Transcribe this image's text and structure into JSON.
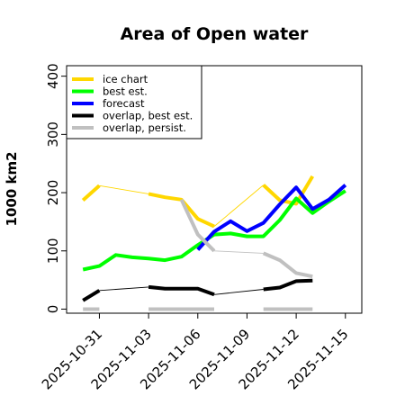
{
  "chart_data": {
    "type": "line",
    "title": "Area of Open water",
    "xlabel": "",
    "ylabel": "1000 km2",
    "ylim": [
      -7,
      418
    ],
    "xlim": [
      "2025-10-29",
      "2025-11-16"
    ],
    "yticks": [
      0,
      100,
      200,
      300,
      400
    ],
    "xticks": [
      "2025-10-31",
      "2025-11-03",
      "2025-11-06",
      "2025-11-09",
      "2025-11-12",
      "2025-11-15"
    ],
    "xtick_colors": [
      "#000000",
      "#000000",
      "#228B22",
      "#000000",
      "#000000",
      "#000000"
    ],
    "legend_position": "top-left",
    "grid": false,
    "series": [
      {
        "name": "ice chart",
        "color": "#FFD700",
        "segments": [
          [
            [
              "2025-10-30",
              187
            ],
            [
              "2025-10-31",
              212
            ]
          ],
          [
            [
              "2025-11-03",
              198
            ],
            [
              "2025-11-04",
              192
            ],
            [
              "2025-11-05",
              188
            ],
            [
              "2025-11-06",
              155
            ],
            [
              "2025-11-07",
              142
            ]
          ],
          [
            [
              "2025-11-10",
              213
            ],
            [
              "2025-11-11",
              187
            ],
            [
              "2025-11-12",
              181
            ],
            [
              "2025-11-13",
              228
            ]
          ]
        ],
        "connectors": [
          [
            [
              "2025-10-31",
              212
            ],
            [
              "2025-11-03",
              198
            ]
          ],
          [
            [
              "2025-11-07",
              142
            ],
            [
              "2025-11-10",
              213
            ]
          ]
        ]
      },
      {
        "name": "best est.",
        "color": "#00FF00",
        "points": [
          [
            "2025-10-30",
            68
          ],
          [
            "2025-10-31",
            74
          ],
          [
            "2025-11-01",
            93
          ],
          [
            "2025-11-02",
            89
          ],
          [
            "2025-11-03",
            87
          ],
          [
            "2025-11-04",
            84
          ],
          [
            "2025-11-05",
            90
          ],
          [
            "2025-11-06",
            110
          ],
          [
            "2025-11-07",
            128
          ],
          [
            "2025-11-08",
            130
          ],
          [
            "2025-11-09",
            125
          ],
          [
            "2025-11-10",
            125
          ],
          [
            "2025-11-11",
            153
          ],
          [
            "2025-11-12",
            190
          ],
          [
            "2025-11-13",
            165
          ],
          [
            "2025-11-14",
            185
          ],
          [
            "2025-11-15",
            203
          ]
        ]
      },
      {
        "name": "forecast",
        "color": "#0000FF",
        "points": [
          [
            "2025-11-06",
            102
          ],
          [
            "2025-11-07",
            133
          ],
          [
            "2025-11-08",
            151
          ],
          [
            "2025-11-09",
            134
          ],
          [
            "2025-11-10",
            148
          ],
          [
            "2025-11-11",
            180
          ],
          [
            "2025-11-12",
            209
          ],
          [
            "2025-11-13",
            172
          ],
          [
            "2025-11-14",
            188
          ],
          [
            "2025-11-15",
            213
          ]
        ]
      },
      {
        "name": "overlap, best est.",
        "color": "#000000",
        "segments": [
          [
            [
              "2025-10-30",
              15
            ],
            [
              "2025-10-31",
              32
            ]
          ],
          [
            [
              "2025-11-03",
              38
            ],
            [
              "2025-11-04",
              35
            ],
            [
              "2025-11-05",
              35
            ],
            [
              "2025-11-06",
              35
            ],
            [
              "2025-11-07",
              25
            ]
          ],
          [
            [
              "2025-11-10",
              34
            ],
            [
              "2025-11-11",
              37
            ],
            [
              "2025-11-12",
              48
            ],
            [
              "2025-11-13",
              49
            ]
          ]
        ],
        "connectors": [
          [
            [
              "2025-10-31",
              32
            ],
            [
              "2025-11-03",
              38
            ]
          ],
          [
            [
              "2025-11-07",
              25
            ],
            [
              "2025-11-10",
              34
            ]
          ]
        ]
      },
      {
        "name": "overlap, persist.",
        "color": "#C0C0C0",
        "segments": [
          [
            [
              "2025-10-30",
              0
            ],
            [
              "2025-10-31",
              0
            ]
          ],
          [
            [
              "2025-11-03",
              0
            ],
            [
              "2025-11-07",
              0
            ]
          ],
          [
            [
              "2025-11-10",
              0
            ],
            [
              "2025-11-13",
              0
            ]
          ],
          [
            [
              "2025-11-05",
              188
            ],
            [
              "2025-11-06",
              128
            ],
            [
              "2025-11-07",
              100
            ]
          ],
          [
            [
              "2025-11-10",
              96
            ],
            [
              "2025-11-11",
              84
            ],
            [
              "2025-11-12",
              62
            ],
            [
              "2025-11-13",
              56
            ]
          ]
        ],
        "connectors": [
          [
            [
              "2025-11-07",
              100
            ],
            [
              "2025-11-10",
              96
            ]
          ]
        ]
      }
    ]
  }
}
